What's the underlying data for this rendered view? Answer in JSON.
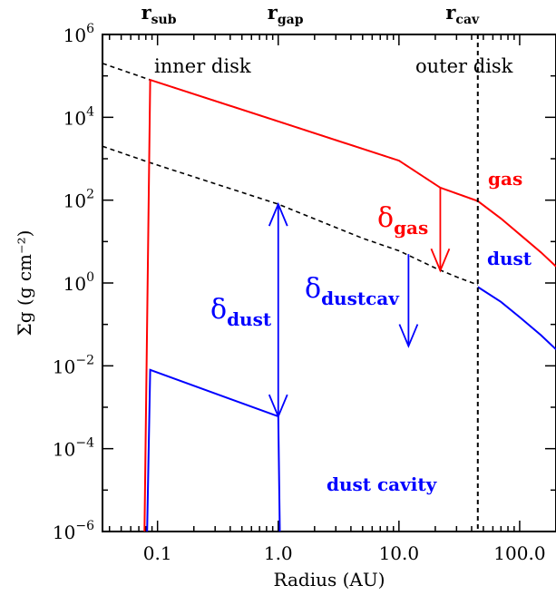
{
  "chart_data": {
    "type": "line",
    "xlabel": "Radius (AU)",
    "ylabel": "Σg (g cm⁻²)",
    "x_scale": "log",
    "y_scale": "log",
    "xlim": [
      0.035,
      200
    ],
    "ylim": [
      1e-06,
      1000000.0
    ],
    "grid": false,
    "x_ticks": [
      {
        "value": 0.1,
        "label": "0.1"
      },
      {
        "value": 1,
        "label": "1.0"
      },
      {
        "value": 10,
        "label": "10.0"
      },
      {
        "value": 100,
        "label": "100.0"
      }
    ],
    "y_ticks": [
      {
        "value": 1e-06,
        "base": "10",
        "exp": "−6"
      },
      {
        "value": 0.0001,
        "base": "10",
        "exp": "−4"
      },
      {
        "value": 0.01,
        "base": "10",
        "exp": "−2"
      },
      {
        "value": 1,
        "base": "10",
        "exp": "0"
      },
      {
        "value": 100,
        "base": "10",
        "exp": "2"
      },
      {
        "value": 10000.0,
        "base": "10",
        "exp": "4"
      },
      {
        "value": 1000000.0,
        "base": "10",
        "exp": "6"
      }
    ],
    "top_markers": [
      {
        "x": 0.09,
        "main": "r",
        "sub": "sub"
      },
      {
        "x": 1.0,
        "main": "r",
        "sub": "gap"
      },
      {
        "x": 30,
        "main": "r",
        "sub": "cav"
      }
    ],
    "colors": {
      "gas": "#ff0000",
      "dust": "#0000ff",
      "reference": "#000000"
    },
    "series": [
      {
        "key": "gas_reference",
        "color": "#000000",
        "dashed": true,
        "points": [
          [
            0.035,
            200000
          ],
          [
            0.087,
            80000
          ],
          [
            1,
            8000
          ],
          [
            10,
            900
          ],
          [
            22,
            200
          ],
          [
            45,
            95
          ]
        ]
      },
      {
        "key": "dust_reference",
        "color": "#000000",
        "dashed": true,
        "points": [
          [
            0.035,
            2000
          ],
          [
            0.087,
            800
          ],
          [
            1,
            80
          ],
          [
            5,
            12
          ],
          [
            10,
            6
          ],
          [
            20,
            2.3
          ],
          [
            30,
            1.4
          ],
          [
            45,
            0.9
          ]
        ]
      },
      {
        "key": "gas",
        "color": "#ff0000",
        "dashed": false,
        "points": [
          [
            0.078,
            1e-06
          ],
          [
            0.087,
            80000
          ],
          [
            1,
            8000
          ],
          [
            10,
            900
          ],
          [
            22,
            200
          ],
          [
            45,
            95
          ],
          [
            70,
            36
          ],
          [
            100,
            15
          ],
          [
            150,
            5.5
          ],
          [
            200,
            2.5
          ]
        ]
      },
      {
        "key": "dust_inner",
        "color": "#0000ff",
        "dashed": false,
        "points": [
          [
            0.082,
            1e-06
          ],
          [
            0.087,
            0.008
          ],
          [
            1.0,
            0.0006
          ],
          [
            1.03,
            1e-06
          ]
        ]
      },
      {
        "key": "dust_outer",
        "color": "#0000ff",
        "dashed": false,
        "points": [
          [
            45,
            0.8
          ],
          [
            70,
            0.35
          ],
          [
            100,
            0.15
          ],
          [
            150,
            0.055
          ],
          [
            200,
            0.025
          ]
        ]
      }
    ],
    "vlines": [
      {
        "x": 45,
        "dashed": true,
        "color": "#000000"
      }
    ],
    "arrows": [
      {
        "key": "delta_dust",
        "color": "#0000ff",
        "x": 1.0,
        "y_from": 80,
        "y_to": 0.0006,
        "double": true
      },
      {
        "key": "delta_gas",
        "color": "#ff0000",
        "x": 22,
        "y_from": 200,
        "y_to": 2,
        "double": false
      },
      {
        "key": "delta_dustcav",
        "color": "#0000ff",
        "x": 12,
        "y_from": 5,
        "y_to": 0.03,
        "double": false
      }
    ],
    "labels": {
      "inner_disk": "inner disk",
      "outer_disk": "outer disk",
      "gas": "gas",
      "dust": "dust",
      "dust_cavity": "dust cavity",
      "delta_symbol": "δ",
      "delta_gas_sub": "gas",
      "delta_dust_sub": "dust",
      "delta_dustcav_sub": "dustcav"
    }
  }
}
